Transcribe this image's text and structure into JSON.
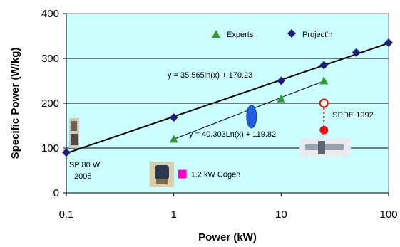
{
  "chart_data": {
    "type": "scatter",
    "xscale": "log",
    "xlim": [
      0.1,
      100
    ],
    "ylim": [
      0,
      400
    ],
    "x_ticks": [
      "0.1",
      "1",
      "10",
      "100"
    ],
    "y_ticks": [
      "0",
      "100",
      "200",
      "300",
      "400"
    ],
    "xlabel": "Power (kW)",
    "ylabel": "Specific Power (W/kg)",
    "grid": "horizontal",
    "legend_position": "top-right",
    "plot_background": "#ccffff",
    "series": [
      {
        "name": "Experts",
        "marker": "triangle",
        "color": "#339933",
        "x": [
          1,
          10,
          25
        ],
        "y": [
          120,
          210,
          250
        ]
      },
      {
        "name": "Project'n",
        "marker": "diamond",
        "color": "#1f1f7a",
        "x": [
          0.1,
          1,
          10,
          25,
          50,
          100
        ],
        "y": [
          90,
          168,
          250,
          285,
          313,
          335
        ]
      }
    ],
    "trendlines": [
      {
        "label": "y = 35.565ln(x) + 170.23",
        "a": 35.565,
        "b": 170.23,
        "x_range": [
          0.1,
          100
        ]
      },
      {
        "label": "y = 40.303Ln(x) + 119.82",
        "a": 40.303,
        "b": 119.82,
        "x_range": [
          1,
          25
        ]
      }
    ],
    "annotations": [
      {
        "label": "SP 80 W",
        "x": 0.1,
        "y": 90
      },
      {
        "label": "2005",
        "x": 0.1,
        "y": 90
      },
      {
        "label": "1.2 kW Cogen",
        "x": 1.2,
        "y": 42,
        "marker": "square",
        "color": "#ff00cc"
      },
      {
        "label": "SPDE 1992",
        "x": 25,
        "y_open": 200,
        "y_filled": 140,
        "color": "#ee1111"
      }
    ],
    "ellipse": {
      "x": 5.3,
      "y": 170,
      "color": "#1f5fe0"
    }
  }
}
